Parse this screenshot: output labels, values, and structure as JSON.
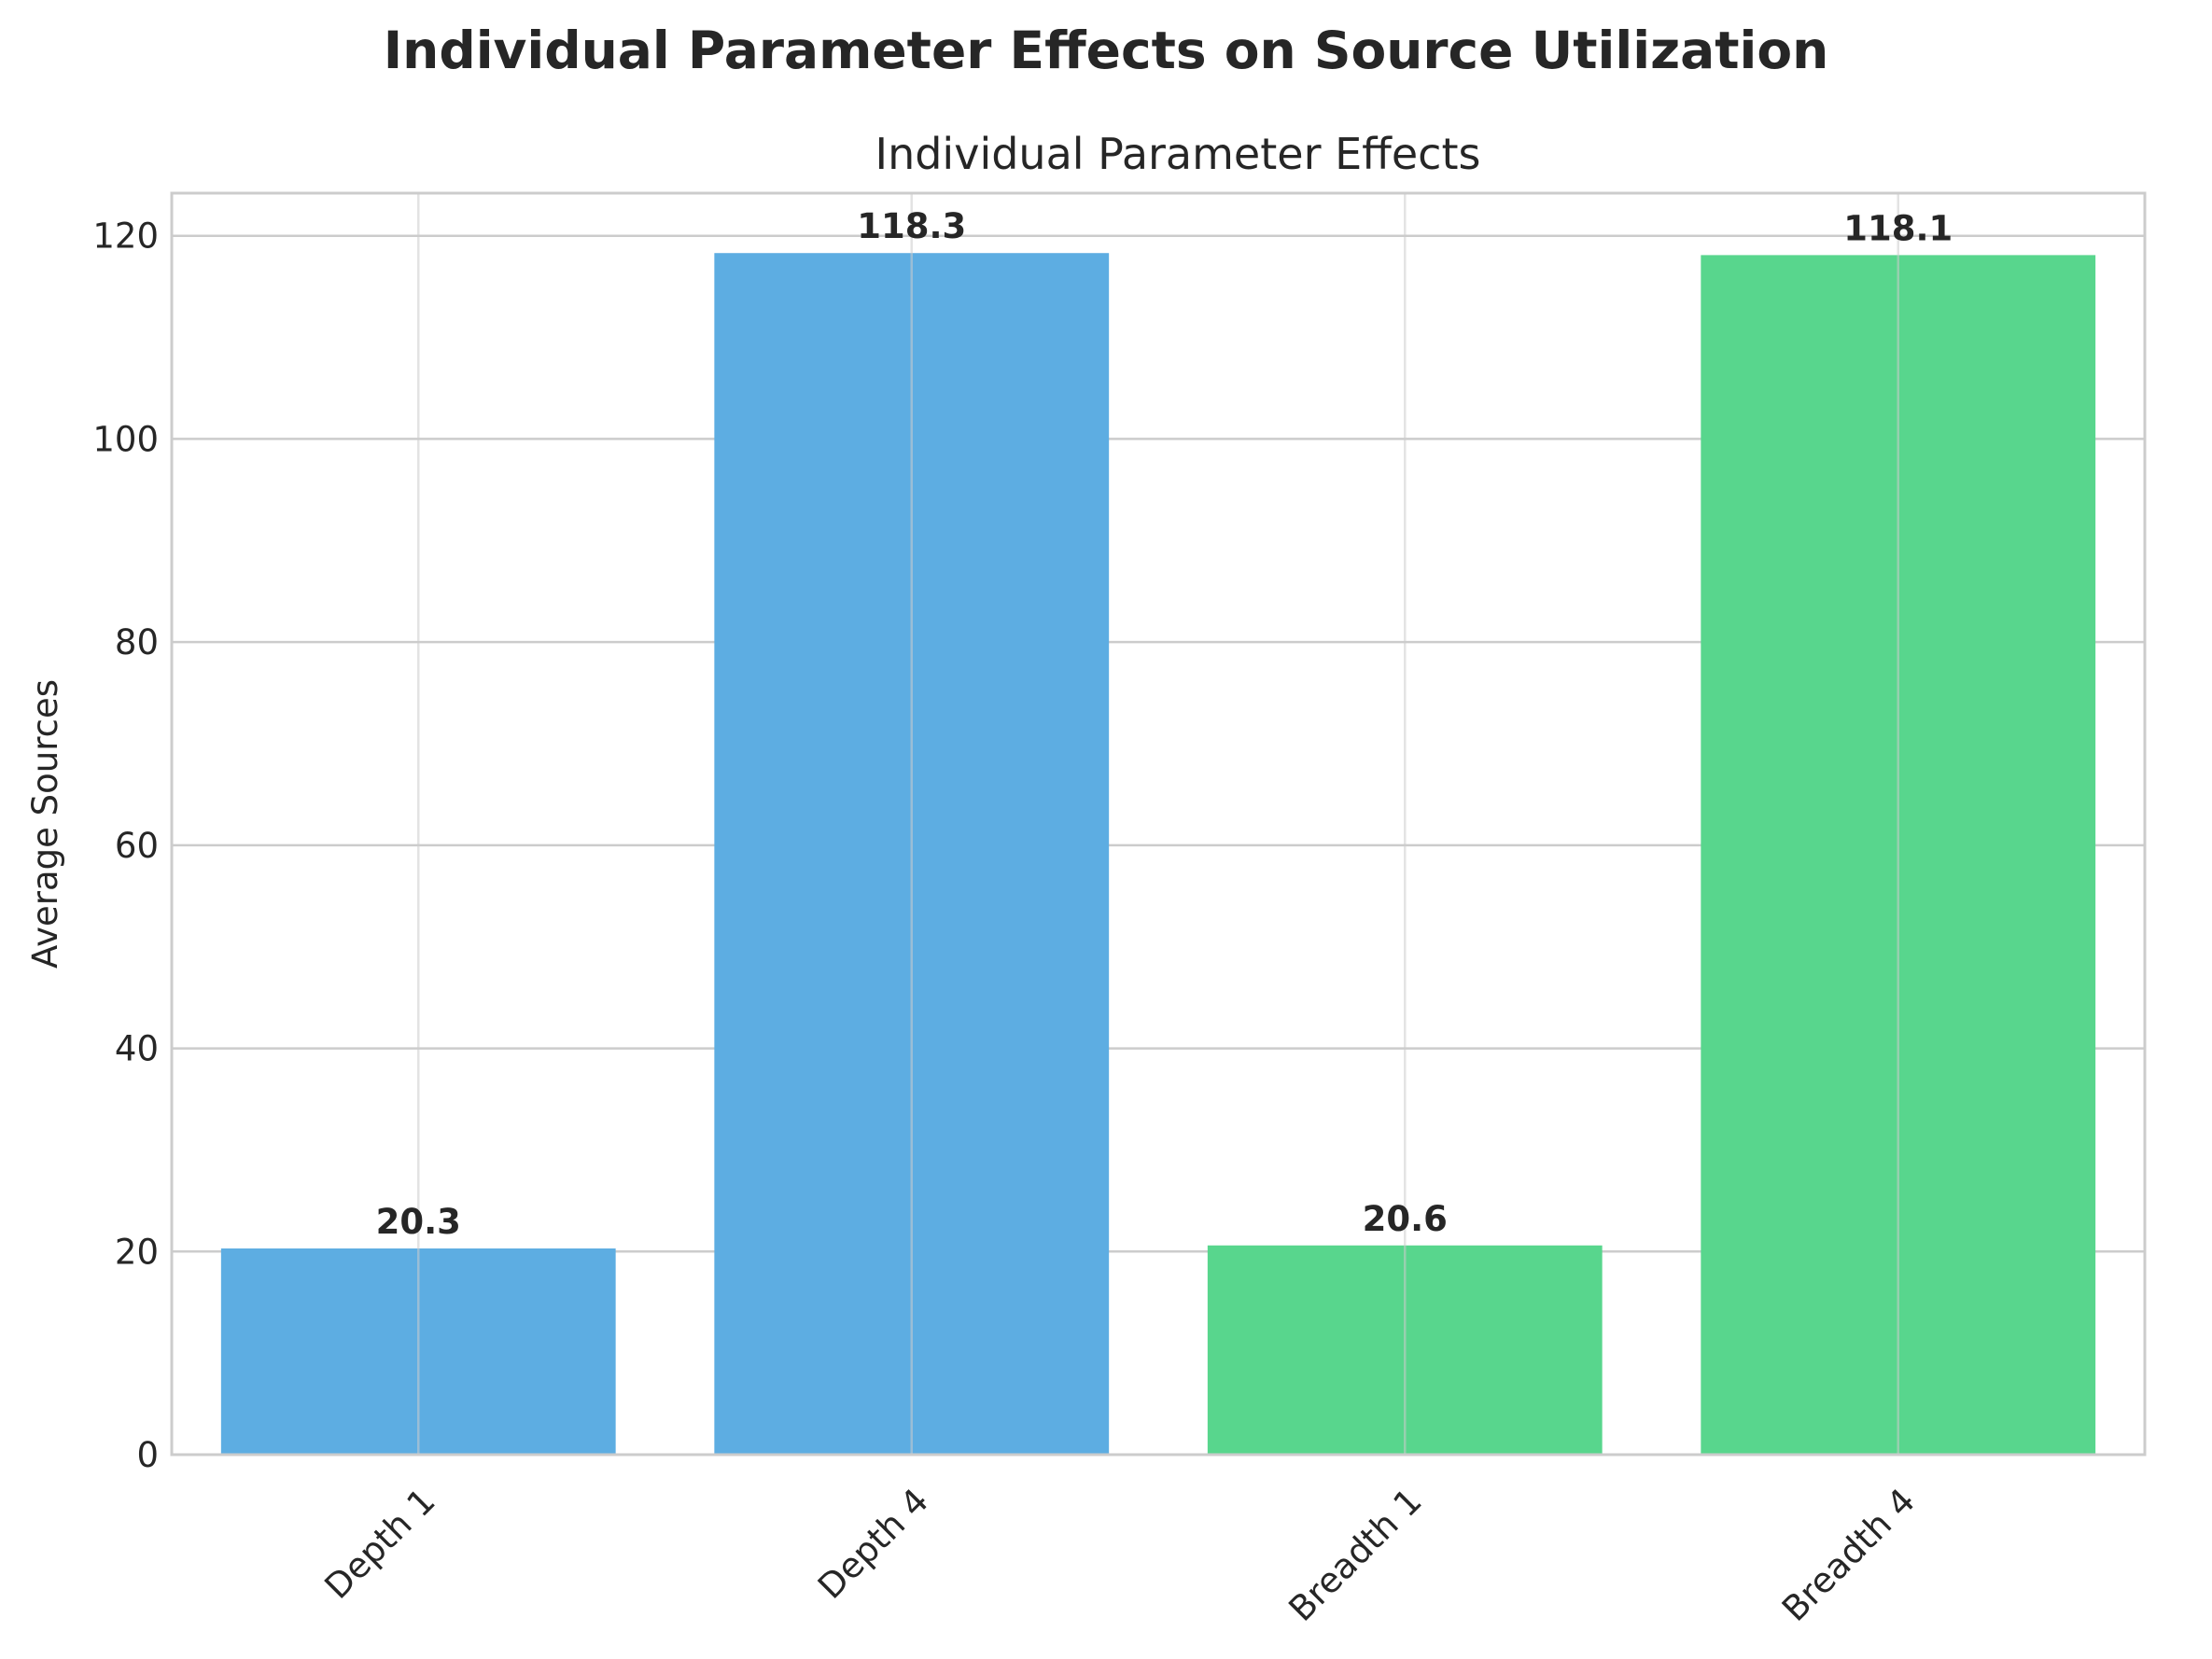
{
  "figure": {
    "suptitle": "Individual Parameter Effects on Source Utilization"
  },
  "chart_data": {
    "type": "bar",
    "title": "Individual Parameter Effects",
    "xlabel": "",
    "ylabel": "Average Sources",
    "categories": [
      "Depth 1",
      "Depth 4",
      "Breadth 1",
      "Breadth 4"
    ],
    "values": [
      20.3,
      118.3,
      20.6,
      118.1
    ],
    "value_labels": [
      "20.3",
      "118.3",
      "20.6",
      "118.1"
    ],
    "colors": [
      "#5dade2",
      "#5dade2",
      "#58d68d",
      "#58d68d"
    ],
    "ylim": [
      0,
      124.2
    ],
    "yticks": [
      0,
      20,
      40,
      60,
      80,
      100,
      120
    ],
    "grid": true,
    "xtick_rotation_deg": 45
  }
}
